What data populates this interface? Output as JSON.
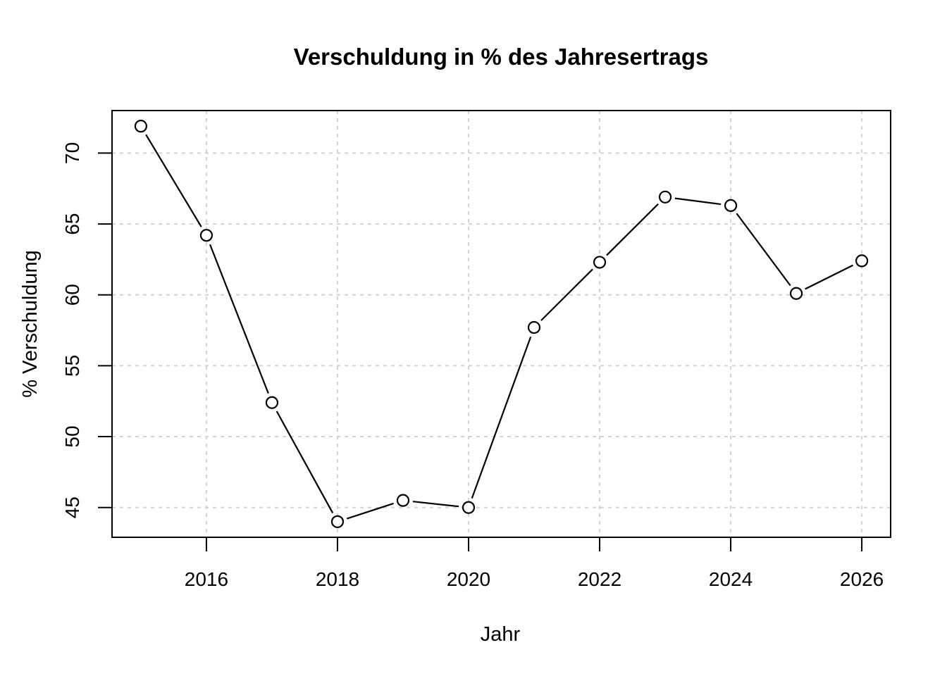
{
  "chart_data": {
    "type": "line",
    "title": "Verschuldung in % des Jahresertrags",
    "xlabel": "Jahr",
    "ylabel": "% Verschuldung",
    "x": [
      2015,
      2016,
      2017,
      2018,
      2019,
      2020,
      2021,
      2022,
      2023,
      2024,
      2025,
      2026
    ],
    "series": [
      {
        "name": "Verschuldung",
        "values": [
          71.9,
          64.2,
          52.4,
          44.0,
          45.5,
          45.0,
          57.7,
          62.3,
          66.9,
          66.3,
          60.1,
          62.4
        ]
      }
    ],
    "x_ticks": [
      2016,
      2018,
      2020,
      2022,
      2024,
      2026
    ],
    "y_ticks": [
      45,
      50,
      55,
      60,
      65,
      70
    ],
    "xlim": [
      2014.56,
      2026.44
    ],
    "ylim": [
      42.9,
      73.0
    ],
    "grid": true,
    "legend_position": "none",
    "marker": "open-circle",
    "line_color": "#000000",
    "grid_color": "#d4d4d4",
    "background_color": "#ffffff"
  }
}
